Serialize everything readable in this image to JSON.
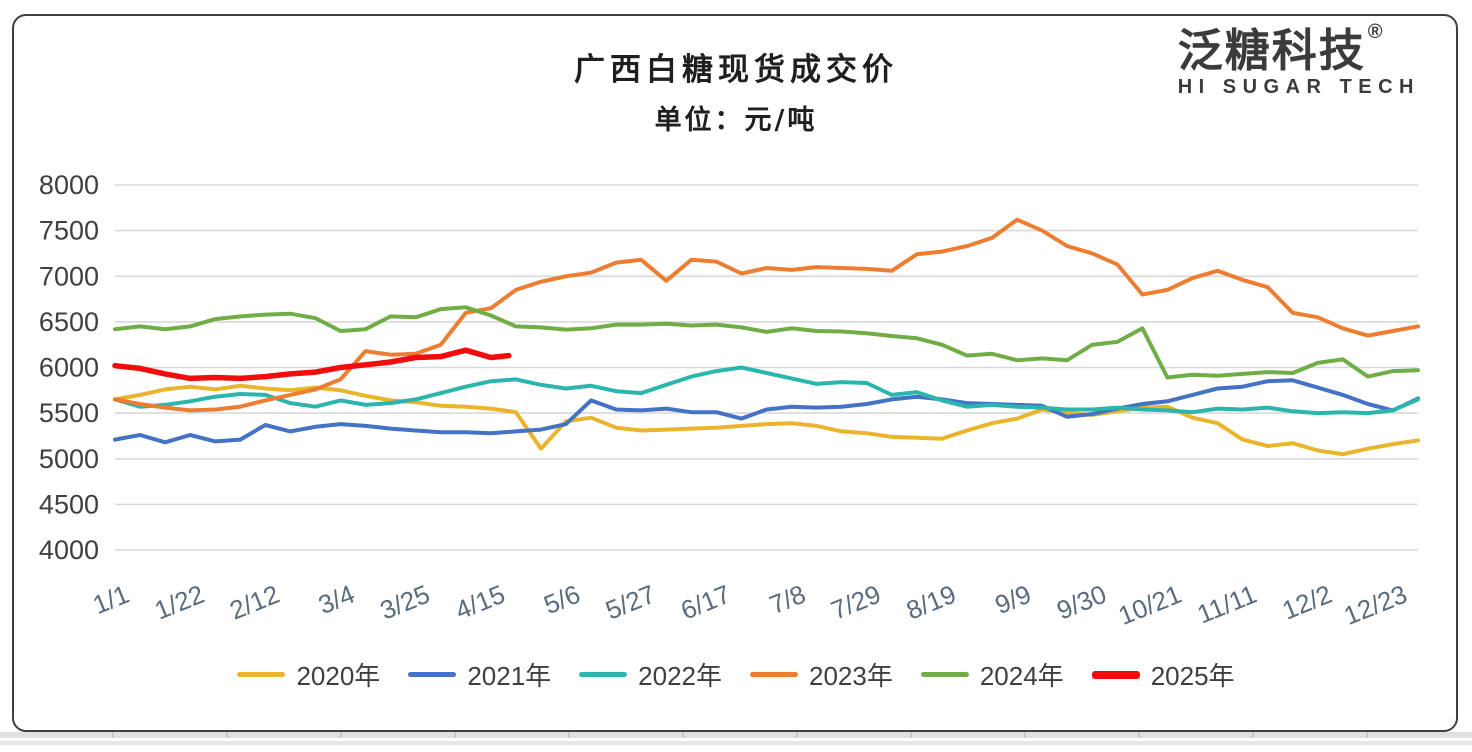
{
  "header": {
    "title": "广西白糖现货成交价",
    "subtitle": "单位：元/吨"
  },
  "logo": {
    "name": "泛糖科技",
    "registered": "®",
    "tagline": "HI SUGAR TECH"
  },
  "chart_data": {
    "type": "line",
    "title": "广西白糖现货成交价",
    "unit_label": "单位：元/吨",
    "ylim": [
      4000,
      8000
    ],
    "yticks": [
      4000,
      4500,
      5000,
      5500,
      6000,
      6500,
      7000,
      7500,
      8000
    ],
    "xlim_days": [
      0,
      364
    ],
    "xticks": [
      {
        "day": 0,
        "label": "1/1"
      },
      {
        "day": 21,
        "label": "1/22"
      },
      {
        "day": 42,
        "label": "2/12"
      },
      {
        "day": 63,
        "label": "3/4"
      },
      {
        "day": 84,
        "label": "3/25"
      },
      {
        "day": 105,
        "label": "4/15"
      },
      {
        "day": 126,
        "label": "5/6"
      },
      {
        "day": 147,
        "label": "5/27"
      },
      {
        "day": 168,
        "label": "6/17"
      },
      {
        "day": 189,
        "label": "7/8"
      },
      {
        "day": 210,
        "label": "7/29"
      },
      {
        "day": 231,
        "label": "8/19"
      },
      {
        "day": 252,
        "label": "9/9"
      },
      {
        "day": 273,
        "label": "9/30"
      },
      {
        "day": 294,
        "label": "10/21"
      },
      {
        "day": 315,
        "label": "11/11"
      },
      {
        "day": 336,
        "label": "12/2"
      },
      {
        "day": 357,
        "label": "12/23"
      }
    ],
    "grid": "horizontal",
    "grid_color": "#D9D9D9",
    "yaxis_label_color": "#3F3F3F",
    "xaxis_label_color": "#5A6B7D",
    "legend_position": "bottom",
    "series": [
      {
        "name": "2020年",
        "color": "#EAB42C",
        "width": 4,
        "days": [
          0,
          7,
          14,
          21,
          28,
          35,
          42,
          49,
          56,
          63,
          70,
          77,
          84,
          91,
          98,
          105,
          112,
          119,
          126,
          133,
          140,
          147,
          154,
          161,
          168,
          175,
          182,
          189,
          196,
          203,
          210,
          217,
          224,
          231,
          238,
          245,
          252,
          259,
          266,
          273,
          280,
          287,
          294,
          301,
          308,
          315,
          322,
          329,
          336,
          343,
          350,
          357,
          364
        ],
        "values": [
          5650,
          5700,
          5760,
          5790,
          5760,
          5800,
          5770,
          5750,
          5780,
          5750,
          5690,
          5640,
          5620,
          5580,
          5570,
          5550,
          5510,
          5110,
          5410,
          5450,
          5340,
          5310,
          5320,
          5330,
          5340,
          5360,
          5380,
          5390,
          5360,
          5300,
          5280,
          5240,
          5230,
          5220,
          5310,
          5390,
          5440,
          5540,
          5500,
          5480,
          5520,
          5560,
          5570,
          5450,
          5390,
          5210,
          5140,
          5170,
          5090,
          5050,
          5110,
          5160,
          5200
        ]
      },
      {
        "name": "2021年",
        "color": "#4472C4",
        "width": 4,
        "days": [
          0,
          7,
          14,
          21,
          28,
          35,
          42,
          49,
          56,
          63,
          70,
          77,
          84,
          91,
          98,
          105,
          112,
          119,
          126,
          133,
          140,
          147,
          154,
          161,
          168,
          175,
          182,
          189,
          196,
          203,
          210,
          217,
          224,
          231,
          238,
          245,
          252,
          259,
          266,
          273,
          280,
          287,
          294,
          301,
          308,
          315,
          322,
          329,
          336,
          343,
          350,
          357,
          364
        ],
        "values": [
          5210,
          5260,
          5180,
          5260,
          5190,
          5210,
          5370,
          5300,
          5350,
          5380,
          5360,
          5330,
          5310,
          5290,
          5290,
          5280,
          5300,
          5320,
          5380,
          5640,
          5540,
          5530,
          5550,
          5510,
          5510,
          5440,
          5540,
          5570,
          5560,
          5570,
          5600,
          5650,
          5680,
          5650,
          5610,
          5600,
          5590,
          5580,
          5460,
          5490,
          5550,
          5600,
          5630,
          5700,
          5770,
          5790,
          5850,
          5860,
          5780,
          5700,
          5600,
          5530,
          5660
        ]
      },
      {
        "name": "2022年",
        "color": "#2CB5AD",
        "width": 4,
        "days": [
          0,
          7,
          14,
          21,
          28,
          35,
          42,
          49,
          56,
          63,
          70,
          77,
          84,
          91,
          98,
          105,
          112,
          119,
          126,
          133,
          140,
          147,
          154,
          161,
          168,
          175,
          182,
          189,
          196,
          203,
          210,
          217,
          224,
          231,
          238,
          245,
          252,
          259,
          266,
          273,
          280,
          287,
          294,
          301,
          308,
          315,
          322,
          329,
          336,
          343,
          350,
          357,
          364
        ],
        "values": [
          5650,
          5570,
          5590,
          5630,
          5680,
          5710,
          5700,
          5610,
          5570,
          5640,
          5590,
          5610,
          5650,
          5720,
          5790,
          5850,
          5870,
          5810,
          5770,
          5800,
          5740,
          5720,
          5810,
          5900,
          5960,
          6000,
          5940,
          5880,
          5820,
          5840,
          5830,
          5700,
          5730,
          5640,
          5570,
          5590,
          5570,
          5560,
          5540,
          5540,
          5560,
          5540,
          5530,
          5510,
          5550,
          5540,
          5560,
          5520,
          5500,
          5510,
          5500,
          5530,
          5650
        ]
      },
      {
        "name": "2023年",
        "color": "#ED7D31",
        "width": 4,
        "days": [
          0,
          7,
          14,
          21,
          28,
          35,
          42,
          49,
          56,
          63,
          70,
          77,
          84,
          91,
          98,
          105,
          112,
          119,
          126,
          133,
          140,
          147,
          154,
          161,
          168,
          175,
          182,
          189,
          196,
          203,
          210,
          217,
          224,
          231,
          238,
          245,
          252,
          259,
          266,
          273,
          280,
          287,
          294,
          301,
          308,
          315,
          322,
          329,
          336,
          343,
          350,
          357,
          364
        ],
        "values": [
          5650,
          5600,
          5560,
          5530,
          5540,
          5570,
          5640,
          5700,
          5760,
          5870,
          6180,
          6140,
          6150,
          6250,
          6600,
          6650,
          6850,
          6940,
          7000,
          7040,
          7150,
          7180,
          6950,
          7180,
          7160,
          7030,
          7090,
          7070,
          7100,
          7090,
          7080,
          7060,
          7240,
          7270,
          7330,
          7420,
          7620,
          7500,
          7330,
          7250,
          7130,
          6800,
          6850,
          6980,
          7060,
          6960,
          6880,
          6600,
          6550,
          6430,
          6350,
          6400,
          6450
        ]
      },
      {
        "name": "2024年",
        "color": "#70AD47",
        "width": 4,
        "days": [
          0,
          7,
          14,
          21,
          28,
          35,
          42,
          49,
          56,
          63,
          70,
          77,
          84,
          91,
          98,
          105,
          112,
          119,
          126,
          133,
          140,
          147,
          154,
          161,
          168,
          175,
          182,
          189,
          196,
          203,
          210,
          217,
          224,
          231,
          238,
          245,
          252,
          259,
          266,
          273,
          280,
          287,
          294,
          301,
          308,
          315,
          322,
          329,
          336,
          343,
          350,
          357,
          364
        ],
        "values": [
          6420,
          6450,
          6420,
          6450,
          6530,
          6560,
          6580,
          6590,
          6540,
          6400,
          6420,
          6560,
          6550,
          6640,
          6660,
          6570,
          6450,
          6440,
          6415,
          6430,
          6470,
          6470,
          6480,
          6460,
          6470,
          6440,
          6390,
          6430,
          6400,
          6395,
          6375,
          6345,
          6320,
          6250,
          6130,
          6150,
          6080,
          6100,
          6080,
          6250,
          6280,
          6430,
          5890,
          5920,
          5910,
          5930,
          5950,
          5940,
          6050,
          6090,
          5900,
          5960,
          5970
        ]
      },
      {
        "name": "2025年",
        "color": "#F20D0D",
        "width": 5.5,
        "days": [
          0,
          7,
          14,
          21,
          28,
          35,
          42,
          49,
          56,
          63,
          70,
          77,
          84,
          91,
          98,
          105,
          110
        ],
        "values": [
          6020,
          5990,
          5930,
          5880,
          5890,
          5880,
          5900,
          5930,
          5950,
          6000,
          6030,
          6060,
          6110,
          6120,
          6190,
          6110,
          6130
        ]
      }
    ]
  }
}
